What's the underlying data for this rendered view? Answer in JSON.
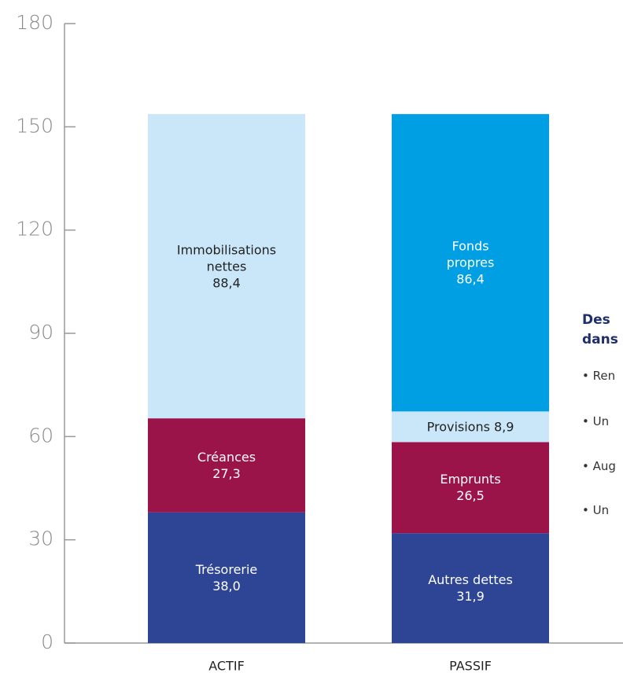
{
  "chart_data": {
    "type": "stacked_bar",
    "categories": [
      "ACTIF",
      "PASSIF"
    ],
    "series": [
      {
        "name": "Trésorerie",
        "color": "#2e4596",
        "values": [
          38.0,
          null
        ],
        "value_labels": [
          "38,0",
          null
        ]
      },
      {
        "name": "Créances",
        "color": "#9b1449",
        "values": [
          27.3,
          null
        ],
        "value_labels": [
          "27,3",
          null
        ]
      },
      {
        "name": "Immobilisations nettes",
        "color": "#c9e7f8",
        "values": [
          88.4,
          null
        ],
        "value_labels": [
          "88,4",
          null
        ]
      },
      {
        "name": "Autres dettes",
        "color": "#2e4596",
        "values": [
          null,
          31.9
        ],
        "value_labels": [
          null,
          "31,9"
        ]
      },
      {
        "name": "Emprunts",
        "color": "#9b1449",
        "values": [
          null,
          26.5
        ],
        "value_labels": [
          null,
          "26,5"
        ]
      },
      {
        "name": "Provisions",
        "color": "#c9e7f8",
        "values": [
          null,
          8.9
        ],
        "value_labels": [
          null,
          "8,9"
        ]
      },
      {
        "name": "Fonds propres",
        "color": "#009fe3",
        "values": [
          null,
          86.4
        ],
        "value_labels": [
          null,
          "86,4"
        ]
      }
    ],
    "ylim": [
      0,
      180
    ],
    "yticks": [
      0,
      30,
      60,
      90,
      120,
      150,
      180
    ],
    "annotations": [
      "Des",
      "dans",
      "• Ren",
      "• Un",
      "• Aug",
      "• Un"
    ]
  }
}
